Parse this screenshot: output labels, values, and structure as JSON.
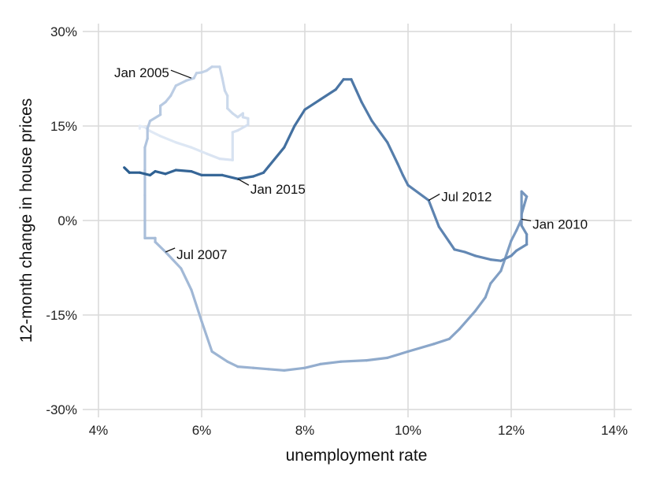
{
  "chart_data": {
    "type": "line",
    "title": "",
    "xlabel": "unemployment rate",
    "ylabel": "12-month change in house prices",
    "xlim": [
      4,
      14
    ],
    "ylim": [
      -30,
      30
    ],
    "grid": true,
    "x_ticks": [
      {
        "value": 4,
        "label": "4%"
      },
      {
        "value": 6,
        "label": "6%"
      },
      {
        "value": 8,
        "label": "8%"
      },
      {
        "value": 10,
        "label": "10%"
      },
      {
        "value": 12,
        "label": "12%"
      },
      {
        "value": 14,
        "label": "14%"
      }
    ],
    "y_ticks": [
      {
        "value": 30,
        "label": "30%"
      },
      {
        "value": 15,
        "label": "15%"
      },
      {
        "value": 0,
        "label": "0%"
      },
      {
        "value": -15,
        "label": "-15%"
      },
      {
        "value": -30,
        "label": "-30%"
      }
    ],
    "color_gradient": [
      "#e4ecf7",
      "#bccde4",
      "#8ea9cb",
      "#5e84b1",
      "#2a5d8f"
    ],
    "series": [
      {
        "points": [
          [
            4.8,
            14.6
          ],
          [
            4.8,
            15.0
          ],
          [
            4.9,
            14.8
          ],
          [
            5.0,
            14.2
          ],
          [
            5.2,
            13.4
          ],
          [
            5.5,
            12.4
          ],
          [
            5.8,
            11.6
          ],
          [
            6.1,
            10.6
          ],
          [
            6.35,
            9.8
          ],
          [
            6.6,
            9.6
          ],
          [
            6.6,
            14.0
          ],
          [
            6.7,
            14.3
          ],
          [
            6.9,
            15.2
          ],
          [
            6.9,
            16.2
          ],
          [
            6.8,
            16.4
          ],
          [
            6.8,
            17.0
          ],
          [
            6.7,
            16.4
          ],
          [
            6.6,
            17.0
          ],
          [
            6.5,
            17.8
          ],
          [
            6.5,
            19.8
          ],
          [
            6.45,
            20.6
          ],
          [
            6.4,
            22.6
          ],
          [
            6.35,
            24.4
          ],
          [
            6.2,
            24.4
          ],
          [
            6.1,
            23.8
          ],
          [
            6.0,
            23.5
          ],
          [
            5.9,
            23.4
          ],
          [
            5.85,
            22.6
          ],
          [
            5.7,
            22.2
          ],
          [
            5.5,
            21.4
          ],
          [
            5.4,
            19.8
          ],
          [
            5.3,
            18.8
          ],
          [
            5.2,
            18.2
          ],
          [
            5.2,
            16.8
          ],
          [
            5.0,
            15.8
          ],
          [
            4.95,
            14.6
          ],
          [
            4.95,
            13.0
          ],
          [
            4.9,
            11.6
          ],
          [
            4.9,
            8.0
          ],
          [
            4.9,
            4.0
          ],
          [
            4.9,
            0.0
          ],
          [
            4.9,
            -2.8
          ],
          [
            5.1,
            -2.8
          ],
          [
            5.1,
            -3.4
          ],
          [
            5.3,
            -5.0
          ],
          [
            5.6,
            -7.6
          ],
          [
            5.8,
            -11.0
          ],
          [
            6.0,
            -16.0
          ],
          [
            6.2,
            -20.8
          ],
          [
            6.5,
            -22.4
          ],
          [
            6.7,
            -23.2
          ],
          [
            7.0,
            -23.4
          ],
          [
            7.3,
            -23.6
          ],
          [
            7.6,
            -23.8
          ],
          [
            8.0,
            -23.4
          ],
          [
            8.3,
            -22.8
          ],
          [
            8.7,
            -22.4
          ],
          [
            9.2,
            -22.2
          ],
          [
            9.6,
            -21.8
          ],
          [
            10.0,
            -20.8
          ],
          [
            10.5,
            -19.6
          ],
          [
            10.8,
            -18.8
          ],
          [
            11.0,
            -17.2
          ],
          [
            11.3,
            -14.4
          ],
          [
            11.5,
            -12.2
          ],
          [
            11.6,
            -10.0
          ],
          [
            11.8,
            -8.0
          ],
          [
            11.9,
            -5.6
          ],
          [
            12.0,
            -3.2
          ],
          [
            12.1,
            -1.6
          ],
          [
            12.2,
            0.2
          ],
          [
            12.2,
            3.0
          ],
          [
            12.2,
            4.6
          ],
          [
            12.3,
            3.8
          ],
          [
            12.25,
            2.4
          ],
          [
            12.2,
            1.0
          ],
          [
            12.2,
            -0.8
          ],
          [
            12.3,
            -2.2
          ],
          [
            12.3,
            -3.8
          ],
          [
            12.1,
            -4.8
          ],
          [
            12.0,
            -5.6
          ],
          [
            11.8,
            -6.4
          ],
          [
            11.6,
            -6.2
          ],
          [
            11.3,
            -5.6
          ],
          [
            11.1,
            -5.0
          ],
          [
            10.9,
            -4.6
          ],
          [
            10.8,
            -3.4
          ],
          [
            10.6,
            -1.0
          ],
          [
            10.4,
            3.2
          ],
          [
            10.0,
            5.6
          ],
          [
            9.9,
            7.2
          ],
          [
            9.8,
            9.0
          ],
          [
            9.6,
            12.4
          ],
          [
            9.3,
            15.8
          ],
          [
            9.1,
            18.8
          ],
          [
            9.0,
            20.6
          ],
          [
            8.9,
            22.4
          ],
          [
            8.75,
            22.4
          ],
          [
            8.6,
            20.8
          ],
          [
            8.3,
            19.2
          ],
          [
            8.0,
            17.6
          ],
          [
            7.8,
            15.0
          ],
          [
            7.6,
            11.6
          ],
          [
            7.3,
            8.6
          ],
          [
            7.2,
            7.6
          ],
          [
            7.0,
            7.0
          ],
          [
            6.7,
            6.6
          ],
          [
            6.4,
            7.2
          ],
          [
            6.0,
            7.2
          ],
          [
            5.8,
            7.8
          ],
          [
            5.5,
            8.0
          ],
          [
            5.3,
            7.4
          ],
          [
            5.1,
            7.8
          ],
          [
            5.0,
            7.2
          ],
          [
            4.8,
            7.6
          ],
          [
            4.6,
            7.6
          ],
          [
            4.5,
            8.4
          ]
        ]
      }
    ],
    "annotations": [
      {
        "label": "Jan 2005",
        "x": 5.8,
        "y": 22.6
      },
      {
        "label": "Jul 2007",
        "x": 5.3,
        "y": -5.0
      },
      {
        "label": "Jan 2010",
        "x": 12.2,
        "y": 0.2
      },
      {
        "label": "Jul 2012",
        "x": 10.4,
        "y": 3.2
      },
      {
        "label": "Jan 2015",
        "x": 6.7,
        "y": 6.6
      }
    ]
  }
}
